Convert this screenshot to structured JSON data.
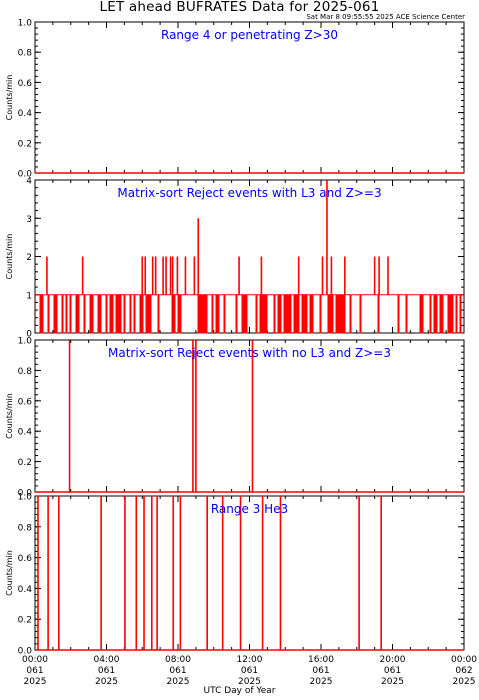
{
  "page": {
    "title": "LET ahead BUFRATES Data for 2025-061",
    "timestamp": "Sat Mar  8 09:55:55 2025 ACE Science Center",
    "xlabel": "UTC Day of Year"
  },
  "colors": {
    "data": "#ff0000",
    "panel_title": "#0000ff",
    "axis": "#000000"
  },
  "chart_data": [
    {
      "type": "line",
      "title": "Range 4 or  penetrating Z>30",
      "ylabel": "Counts/min",
      "xlim": [
        0,
        1440
      ],
      "ylim": [
        0,
        1.0
      ],
      "yticks": [
        "0.0",
        "0.2",
        "0.4",
        "0.6",
        "0.8",
        "1.0"
      ],
      "baseline": 0,
      "spikes": []
    },
    {
      "type": "line",
      "title": "Matrix-sort Reject events with L3 and Z>=3",
      "ylabel": "Counts/min",
      "xlim": [
        0,
        1440
      ],
      "ylim": [
        0,
        4
      ],
      "yticks": [
        "0",
        "1",
        "2",
        "3",
        "4"
      ],
      "baseline": 1,
      "dense_toggle_01": true,
      "spikes": [
        {
          "x": 40,
          "y": 2
        },
        {
          "x": 160,
          "y": 2
        },
        {
          "x": 360,
          "y": 2
        },
        {
          "x": 370,
          "y": 2
        },
        {
          "x": 395,
          "y": 2
        },
        {
          "x": 405,
          "y": 2
        },
        {
          "x": 430,
          "y": 2
        },
        {
          "x": 440,
          "y": 2
        },
        {
          "x": 455,
          "y": 2
        },
        {
          "x": 462,
          "y": 2
        },
        {
          "x": 478,
          "y": 2
        },
        {
          "x": 505,
          "y": 2
        },
        {
          "x": 535,
          "y": 2
        },
        {
          "x": 548,
          "y": 3
        },
        {
          "x": 685,
          "y": 2
        },
        {
          "x": 760,
          "y": 2
        },
        {
          "x": 885,
          "y": 2
        },
        {
          "x": 965,
          "y": 2
        },
        {
          "x": 980,
          "y": 4
        },
        {
          "x": 995,
          "y": 2
        },
        {
          "x": 1040,
          "y": 2
        },
        {
          "x": 1140,
          "y": 2
        },
        {
          "x": 1155,
          "y": 2
        },
        {
          "x": 1185,
          "y": 2
        }
      ]
    },
    {
      "type": "line",
      "title": "Matrix-sort Reject events with no L3 and Z>=3",
      "ylabel": "Counts/min",
      "xlim": [
        0,
        1440
      ],
      "ylim": [
        0,
        1.0
      ],
      "yticks": [
        "0.0",
        "0.2",
        "0.4",
        "0.6",
        "0.8",
        "1.0"
      ],
      "baseline": 0,
      "spikes": [
        {
          "x": 116,
          "y": 1
        },
        {
          "x": 530,
          "y": 1
        },
        {
          "x": 540,
          "y": 1
        },
        {
          "x": 730,
          "y": 1
        }
      ]
    },
    {
      "type": "line",
      "title": "Range 3 He3",
      "ylabel": "Counts/min",
      "xlim": [
        0,
        1440
      ],
      "ylim": [
        0,
        1.0
      ],
      "yticks": [
        "0.0",
        "0.2",
        "0.4",
        "0.6",
        "0.8",
        "1.0"
      ],
      "baseline": 0,
      "spikes": [
        {
          "x": 10,
          "y": 1
        },
        {
          "x": 44,
          "y": 1
        },
        {
          "x": 80,
          "y": 1
        },
        {
          "x": 222,
          "y": 1
        },
        {
          "x": 302,
          "y": 1
        },
        {
          "x": 340,
          "y": 1
        },
        {
          "x": 366,
          "y": 1
        },
        {
          "x": 392,
          "y": 1
        },
        {
          "x": 410,
          "y": 1
        },
        {
          "x": 464,
          "y": 1
        },
        {
          "x": 488,
          "y": 1
        },
        {
          "x": 578,
          "y": 1
        },
        {
          "x": 630,
          "y": 1
        },
        {
          "x": 690,
          "y": 1
        },
        {
          "x": 764,
          "y": 1
        },
        {
          "x": 824,
          "y": 1
        },
        {
          "x": 1088,
          "y": 1
        },
        {
          "x": 1162,
          "y": 1
        }
      ]
    }
  ],
  "xaxis": {
    "tick_labels": [
      {
        "time": "00:00",
        "doy": "061",
        "year": "2025"
      },
      {
        "time": "04:00",
        "doy": "061",
        "year": "2025"
      },
      {
        "time": "08:00",
        "doy": "061",
        "year": "2025"
      },
      {
        "time": "12:00",
        "doy": "061",
        "year": "2025"
      },
      {
        "time": "16:00",
        "doy": "061",
        "year": "2025"
      },
      {
        "time": "20:00",
        "doy": "061",
        "year": "2025"
      },
      {
        "time": "00:00",
        "doy": "062",
        "year": "2025"
      }
    ]
  }
}
